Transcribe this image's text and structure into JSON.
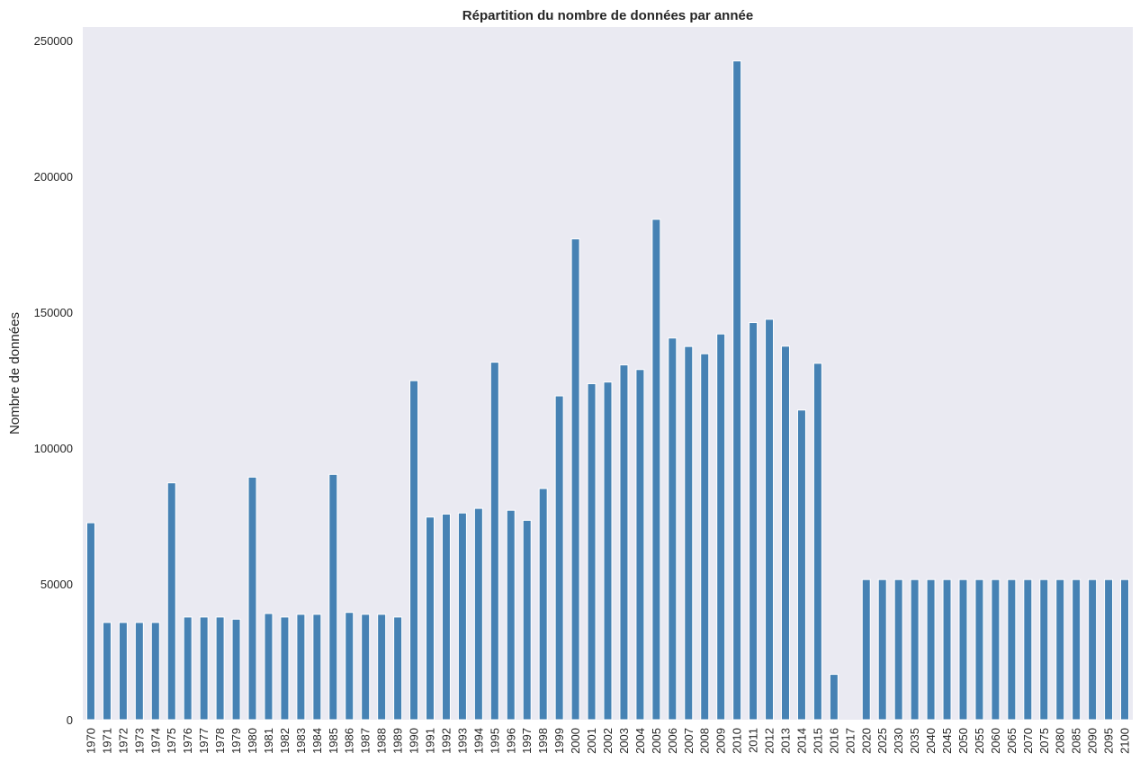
{
  "chart_data": {
    "type": "bar",
    "title": "Répartition du nombre de données par année",
    "xlabel": "",
    "ylabel": "Nombre de données",
    "ylim": [
      0,
      255000
    ],
    "yticks": [
      "0",
      "50000",
      "100000",
      "150000",
      "200000",
      "250000"
    ],
    "grid": false,
    "colors": {
      "bar": "#4682b4",
      "plot_bg": "#eaeaf2",
      "text": "#262626"
    },
    "categories": [
      "1970",
      "1971",
      "1972",
      "1973",
      "1974",
      "1975",
      "1976",
      "1977",
      "1978",
      "1979",
      "1980",
      "1981",
      "1982",
      "1983",
      "1984",
      "1985",
      "1986",
      "1987",
      "1988",
      "1989",
      "1990",
      "1991",
      "1992",
      "1993",
      "1994",
      "1995",
      "1996",
      "1997",
      "1998",
      "1999",
      "2000",
      "2001",
      "2002",
      "2003",
      "2004",
      "2005",
      "2006",
      "2007",
      "2008",
      "2009",
      "2010",
      "2011",
      "2012",
      "2013",
      "2014",
      "2015",
      "2016",
      "2017",
      "2020",
      "2025",
      "2030",
      "2035",
      "2040",
      "2045",
      "2050",
      "2055",
      "2060",
      "2065",
      "2070",
      "2075",
      "2080",
      "2085",
      "2090",
      "2095",
      "2100"
    ],
    "values": [
      72500,
      35800,
      35800,
      35800,
      35800,
      87200,
      37800,
      37800,
      37800,
      37000,
      89300,
      39100,
      37800,
      38800,
      38800,
      90300,
      39500,
      38800,
      38800,
      37800,
      124800,
      74600,
      75700,
      76100,
      77800,
      131600,
      77100,
      73400,
      85100,
      119200,
      177000,
      123700,
      124300,
      130600,
      128900,
      184200,
      140500,
      137400,
      134700,
      142000,
      242500,
      146200,
      147400,
      137500,
      114000,
      131200,
      16700,
      0,
      51600,
      51600,
      51600,
      51600,
      51600,
      51600,
      51600,
      51600,
      51600,
      51600,
      51600,
      51600,
      51600,
      51600,
      51600,
      51600,
      51600
    ]
  }
}
